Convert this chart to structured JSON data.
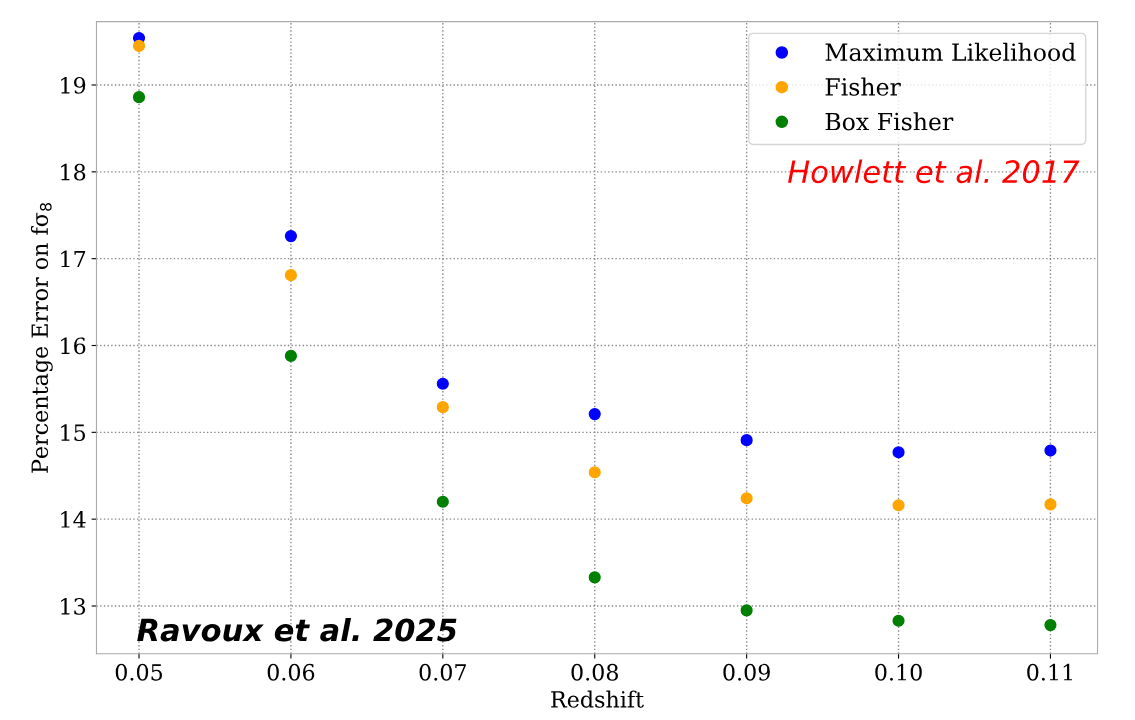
{
  "chart_data": {
    "type": "scatter",
    "xlabel": "Redshift",
    "ylabel": "Percentage Error on fσ$_{8}$",
    "x": [
      0.05,
      0.06,
      0.07,
      0.08,
      0.09,
      0.1,
      0.11
    ],
    "series": [
      {
        "name": "Maximum Likelihood",
        "color": "#0000ff",
        "values": [
          19.54,
          17.26,
          15.56,
          15.21,
          14.91,
          14.77,
          14.79
        ]
      },
      {
        "name": "Fisher",
        "color": "#ffa500",
        "values": [
          19.45,
          16.81,
          15.29,
          14.54,
          14.24,
          14.16,
          14.17
        ]
      },
      {
        "name": "Box Fisher",
        "color": "#008000",
        "values": [
          18.86,
          15.88,
          14.2,
          13.33,
          12.95,
          12.83,
          12.78
        ]
      }
    ],
    "annotations": [
      "Howlett et al. 2017",
      "Ravoux et al. 2025"
    ],
    "xlim": [
      0.0472,
      0.1131
    ],
    "ylim": [
      12.45,
      19.73
    ],
    "xticks": [
      0.05,
      0.06,
      0.07,
      0.08,
      0.09,
      {
        "value": 0.1,
        "label": "0.10"
      },
      0.11
    ],
    "yticks": [
      13,
      14,
      15,
      16,
      17,
      18,
      19
    ],
    "grid": true,
    "legend": "top right",
    "marker": "circle"
  }
}
